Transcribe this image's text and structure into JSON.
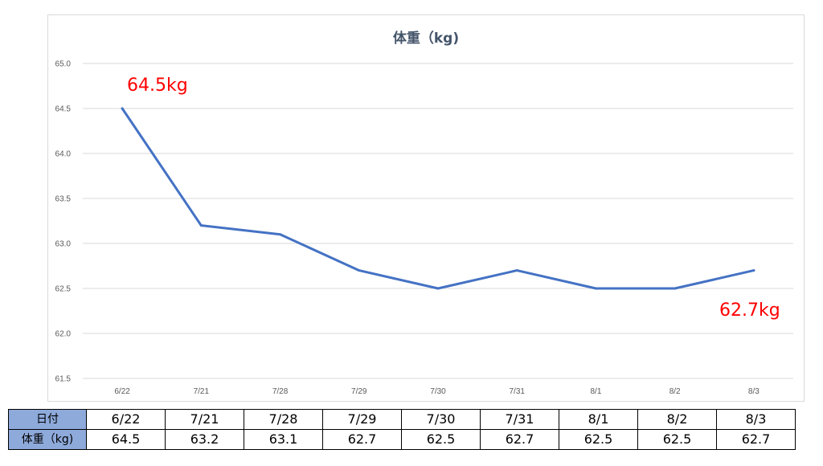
{
  "chart_data": {
    "type": "line",
    "title": "体重（kg)",
    "categories": [
      "6/22",
      "7/21",
      "7/28",
      "7/29",
      "7/30",
      "7/31",
      "8/1",
      "8/2",
      "8/3"
    ],
    "series": [
      {
        "values": [
          64.5,
          63.2,
          63.1,
          62.7,
          62.5,
          62.7,
          62.5,
          62.5,
          62.7
        ],
        "color": "#4472c4"
      }
    ],
    "ylim": [
      61.5,
      65.0
    ],
    "yticks": [
      "61.5",
      "62.0",
      "62.5",
      "63.0",
      "63.5",
      "64.0",
      "64.5",
      "65.0"
    ],
    "grid": true,
    "legend": "none",
    "annotations": [
      {
        "text": "64.5kg",
        "color": "#ff0000"
      },
      {
        "text": "62.7kg",
        "color": "#ff0000"
      }
    ]
  },
  "table": {
    "row_headers": [
      "日付",
      "体重（kg)"
    ],
    "dates": [
      "6/22",
      "7/21",
      "7/28",
      "7/29",
      "7/30",
      "7/31",
      "8/1",
      "8/2",
      "8/3"
    ],
    "weights": [
      "64.5",
      "63.2",
      "63.1",
      "62.7",
      "62.5",
      "62.7",
      "62.5",
      "62.5",
      "62.7"
    ],
    "header_color": "#8eaadb"
  }
}
